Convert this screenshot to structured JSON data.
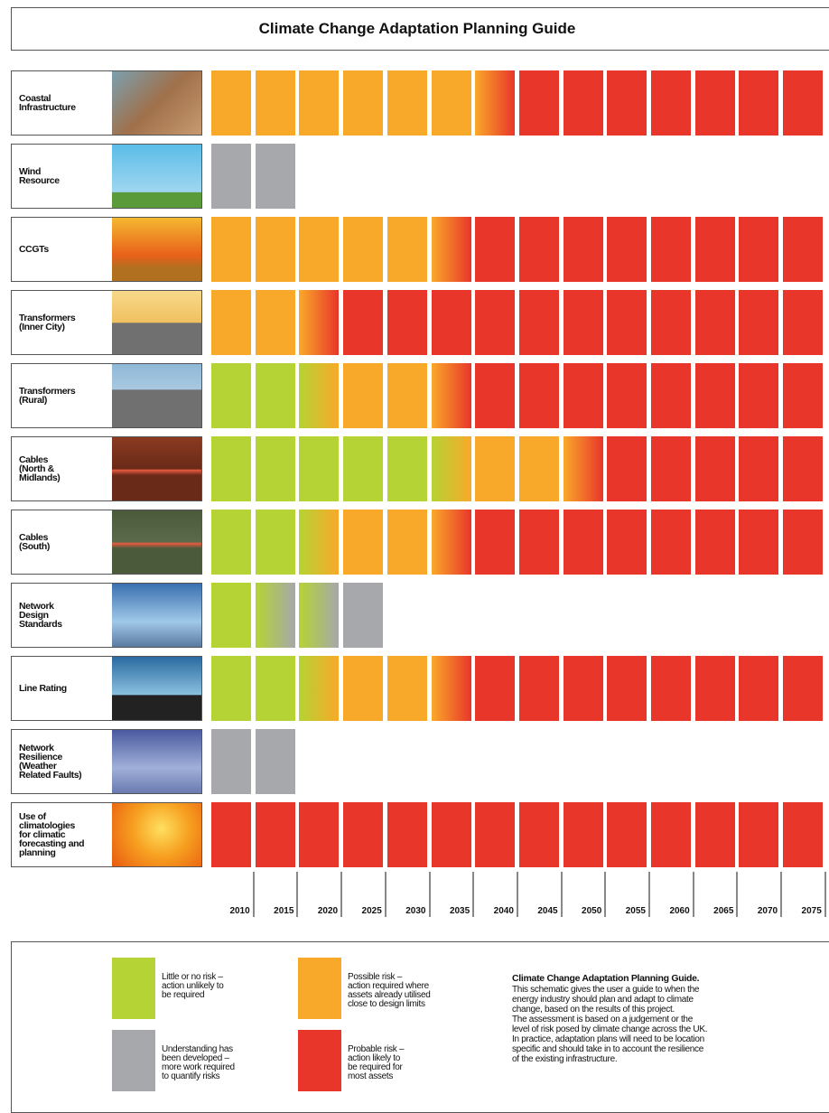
{
  "header": {
    "title": "Climate Change Adaptation Planning Guide"
  },
  "colors": {
    "green": "#b5d334",
    "orange": "#f9a929",
    "red": "#e8362b",
    "grey": "#a6a8ab"
  },
  "rows": [
    {
      "label": [
        "Coastal",
        "Infrastructure"
      ],
      "cells": [
        "#f9a929",
        "#f9a929",
        "#f9a929",
        "#f9a929",
        "#f9a929",
        "#f9a929",
        [
          "#f9a929",
          "#e8362b"
        ],
        "#e8362b",
        "#e8362b",
        "#e8362b",
        "#e8362b",
        "#e8362b",
        "#e8362b",
        "#e8362b"
      ]
    },
    {
      "label": [
        "Wind",
        "Resource"
      ],
      "cells": [
        "#a6a8ab",
        "#a6a8ab"
      ]
    },
    {
      "label": [
        "CCGTs"
      ],
      "cells": [
        "#f9a929",
        "#f9a929",
        "#f9a929",
        "#f9a929",
        "#f9a929",
        [
          "#f9a929",
          "#e8362b"
        ],
        "#e8362b",
        "#e8362b",
        "#e8362b",
        "#e8362b",
        "#e8362b",
        "#e8362b",
        "#e8362b",
        "#e8362b"
      ]
    },
    {
      "label": [
        "Transformers",
        "(Inner City)"
      ],
      "cells": [
        "#f9a929",
        "#f9a929",
        [
          "#f9a929",
          "#e8362b"
        ],
        "#e8362b",
        "#e8362b",
        "#e8362b",
        "#e8362b",
        "#e8362b",
        "#e8362b",
        "#e8362b",
        "#e8362b",
        "#e8362b",
        "#e8362b",
        "#e8362b"
      ]
    },
    {
      "label": [
        "Transformers",
        "(Rural)"
      ],
      "cells": [
        "#b5d334",
        "#b5d334",
        [
          "#b5d334",
          "#f9a929"
        ],
        "#f9a929",
        "#f9a929",
        [
          "#f9a929",
          "#e8362b"
        ],
        "#e8362b",
        "#e8362b",
        "#e8362b",
        "#e8362b",
        "#e8362b",
        "#e8362b",
        "#e8362b",
        "#e8362b"
      ]
    },
    {
      "label": [
        "Cables",
        "(North &",
        "Midlands)"
      ],
      "cells": [
        "#b5d334",
        "#b5d334",
        "#b5d334",
        "#b5d334",
        "#b5d334",
        [
          "#b5d334",
          "#f9a929"
        ],
        "#f9a929",
        "#f9a929",
        [
          "#f9a929",
          "#e8362b"
        ],
        "#e8362b",
        "#e8362b",
        "#e8362b",
        "#e8362b",
        "#e8362b"
      ]
    },
    {
      "label": [
        "Cables",
        "(South)"
      ],
      "cells": [
        "#b5d334",
        "#b5d334",
        [
          "#b5d334",
          "#f9a929"
        ],
        "#f9a929",
        "#f9a929",
        [
          "#f9a929",
          "#e8362b"
        ],
        "#e8362b",
        "#e8362b",
        "#e8362b",
        "#e8362b",
        "#e8362b",
        "#e8362b",
        "#e8362b",
        "#e8362b"
      ]
    },
    {
      "label": [
        "Network",
        "Design",
        "Standards"
      ],
      "cells": [
        "#b5d334",
        [
          "#b5d334",
          "#a6a8ab"
        ],
        [
          "#b5d334",
          "#a6a8ab"
        ],
        "#a6a8ab"
      ]
    },
    {
      "label": [
        "Line Rating"
      ],
      "cells": [
        "#b5d334",
        "#b5d334",
        [
          "#b5d334",
          "#f9a929"
        ],
        "#f9a929",
        "#f9a929",
        [
          "#f9a929",
          "#e8362b"
        ],
        "#e8362b",
        "#e8362b",
        "#e8362b",
        "#e8362b",
        "#e8362b",
        "#e8362b",
        "#e8362b",
        "#e8362b"
      ]
    },
    {
      "label": [
        "Network",
        "Resilience",
        "(Weather",
        "Related Faults)"
      ],
      "cells": [
        "#a6a8ab",
        "#a6a8ab"
      ]
    },
    {
      "label": [
        "Use of",
        "climatologies",
        "for climatic",
        "forecasting and",
        "planning"
      ],
      "cells": [
        "#e8362b",
        "#e8362b",
        "#e8362b",
        "#e8362b",
        "#e8362b",
        "#e8362b",
        "#e8362b",
        "#e8362b",
        "#e8362b",
        "#e8362b",
        "#e8362b",
        "#e8362b",
        "#e8362b",
        "#e8362b"
      ]
    }
  ],
  "years": [
    2010,
    2015,
    2020,
    2025,
    2030,
    2035,
    2040,
    2045,
    2050,
    2055,
    2060,
    2065,
    2070,
    2075
  ],
  "legend": [
    {
      "color": "#b5d334",
      "text": [
        "Little or no risk –",
        "action unlikely to",
        "be required"
      ]
    },
    {
      "color": "#a6a8ab",
      "text": [
        "Understanding has",
        "been developed –",
        "more work required",
        "to quantify risks"
      ]
    },
    {
      "color": "#f9a929",
      "text": [
        "Possible risk –",
        "action required where",
        "assets already utilised",
        "close to design limits"
      ]
    },
    {
      "color": "#e8362b",
      "text": [
        "Probable risk –",
        "action likely to",
        "be required for",
        "most assets"
      ]
    }
  ],
  "description": {
    "title": "Climate Change Adaptation Planning Guide.",
    "lines": [
      "This schematic gives the user a guide to when the",
      "energy industry should plan and adapt to climate",
      "change, based on the results of this project.",
      "The assessment is based on a judgement or the",
      "level of risk posed by climate change across the UK.",
      "In practice, adaptation plans will need to be location",
      "specific and should take in to account the resilience",
      "of the existing infrastructure."
    ]
  }
}
